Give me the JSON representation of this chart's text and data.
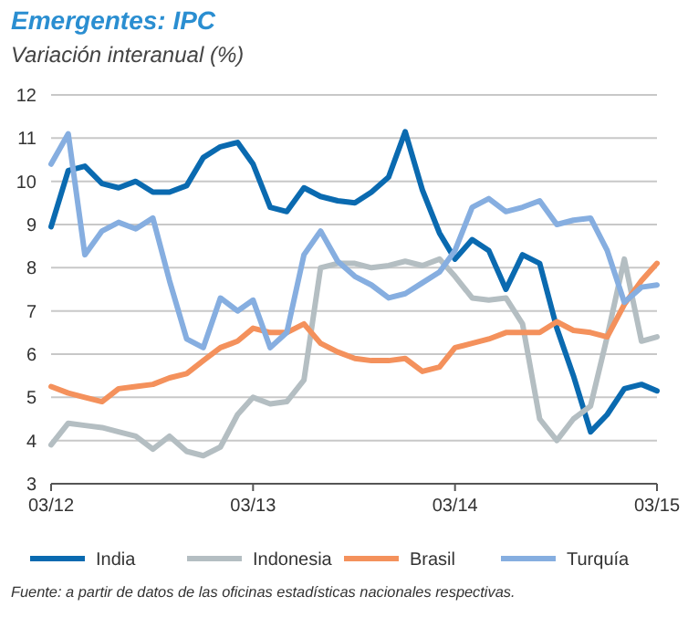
{
  "chart_data": {
    "type": "line",
    "title": "Emergentes: IPC",
    "subtitle": "Variación interanual (%)",
    "x": [
      "2012-03",
      "2012-04",
      "2012-05",
      "2012-06",
      "2012-07",
      "2012-08",
      "2012-09",
      "2012-10",
      "2012-11",
      "2012-12",
      "2013-01",
      "2013-02",
      "2013-03",
      "2013-04",
      "2013-05",
      "2013-06",
      "2013-07",
      "2013-08",
      "2013-09",
      "2013-10",
      "2013-11",
      "2013-12",
      "2014-01",
      "2014-02",
      "2014-03",
      "2014-04",
      "2014-05",
      "2014-06",
      "2014-07",
      "2014-08",
      "2014-09",
      "2014-10",
      "2014-11",
      "2014-12",
      "2015-01",
      "2015-02",
      "2015-03"
    ],
    "series": [
      {
        "name": "India",
        "color": "#0a6ab0",
        "values": [
          8.95,
          10.25,
          10.35,
          9.95,
          9.85,
          10.0,
          9.75,
          9.75,
          9.9,
          10.55,
          10.8,
          10.9,
          10.4,
          9.4,
          9.3,
          9.85,
          9.65,
          9.55,
          9.5,
          9.75,
          10.1,
          11.15,
          9.8,
          8.8,
          8.2,
          8.65,
          8.4,
          7.5,
          8.3,
          8.1,
          6.6,
          5.5,
          4.2,
          4.6,
          5.2,
          5.3,
          5.15
        ]
      },
      {
        "name": "Indonesia",
        "color": "#b4bec2",
        "values": [
          3.9,
          4.4,
          4.35,
          4.3,
          4.2,
          4.1,
          3.8,
          4.1,
          3.75,
          3.65,
          3.85,
          4.6,
          5.0,
          4.85,
          4.9,
          5.4,
          8.0,
          8.1,
          8.1,
          8.0,
          8.05,
          8.15,
          8.05,
          8.2,
          7.8,
          7.3,
          7.25,
          7.3,
          6.7,
          4.5,
          4.0,
          4.5,
          4.8,
          6.4,
          8.2,
          6.3,
          6.4
        ]
      },
      {
        "name": "Brasil",
        "color": "#f4915c",
        "values": [
          5.25,
          5.1,
          5.0,
          4.9,
          5.2,
          5.25,
          5.3,
          5.45,
          5.55,
          5.85,
          6.15,
          6.3,
          6.6,
          6.5,
          6.5,
          6.7,
          6.25,
          6.05,
          5.9,
          5.85,
          5.85,
          5.9,
          5.6,
          5.7,
          6.15,
          6.25,
          6.35,
          6.5,
          6.5,
          6.5,
          6.75,
          6.55,
          6.5,
          6.4,
          7.15,
          7.7,
          8.1
        ]
      },
      {
        "name": "Turquía",
        "color": "#86aee0",
        "values": [
          10.4,
          11.1,
          8.3,
          8.85,
          9.05,
          8.9,
          9.15,
          7.7,
          6.35,
          6.15,
          7.3,
          7.0,
          7.25,
          6.15,
          6.5,
          8.3,
          8.85,
          8.15,
          7.8,
          7.6,
          7.3,
          7.4,
          7.65,
          7.9,
          8.4,
          9.4,
          9.6,
          9.3,
          9.4,
          9.55,
          9.0,
          9.1,
          9.15,
          8.4,
          7.2,
          7.55,
          7.6
        ]
      }
    ],
    "xlim": [
      "2012-03",
      "2015-03"
    ],
    "xticks": [
      {
        "value": "2012-03",
        "label": "03/12"
      },
      {
        "value": "2013-03",
        "label": "03/13"
      },
      {
        "value": "2014-03",
        "label": "03/14"
      },
      {
        "value": "2015-03",
        "label": "03/15"
      }
    ],
    "ylim": [
      3,
      12
    ],
    "yticks": [
      3,
      4,
      5,
      6,
      7,
      8,
      9,
      10,
      11,
      12
    ],
    "grid": "y",
    "legend": "bottom",
    "marker": "none",
    "line_style": "solid",
    "annotations": [
      "Fuente: a partir de datos de las oficinas estadísticas nacionales respectivas."
    ]
  }
}
